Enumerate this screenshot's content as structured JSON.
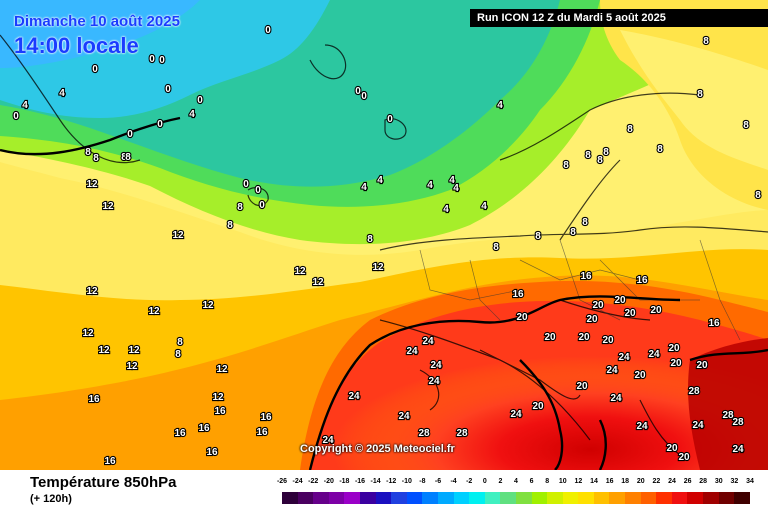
{
  "header": {
    "date": "Dimanche 10 août 2025",
    "time": "14:00 locale",
    "run": "Run ICON 12 Z du Mardi 5 août 2025"
  },
  "copyright": "Copyright © 2025 Meteociel.fr",
  "footer": {
    "title": "Température 850hPa",
    "subtitle": "(+ 120h)"
  },
  "legend": {
    "labels": [
      "-26",
      "-24",
      "-22",
      "-20",
      "-18",
      "-16",
      "-14",
      "-12",
      "-10",
      "-8",
      "-6",
      "-4",
      "-2",
      "0",
      "2",
      "4",
      "6",
      "8",
      "10",
      "12",
      "14",
      "16",
      "18",
      "20",
      "22",
      "24",
      "26",
      "28",
      "30",
      "32",
      "34"
    ],
    "colors": [
      "#2e003a",
      "#4a0060",
      "#66008a",
      "#7d00a6",
      "#9a00c8",
      "#3b00a0",
      "#1a10c0",
      "#2040e0",
      "#0050ff",
      "#0080ff",
      "#00aaff",
      "#00d0ff",
      "#00f0f0",
      "#40f0c0",
      "#60e080",
      "#80e040",
      "#a0f000",
      "#d0f000",
      "#f0f000",
      "#ffe000",
      "#ffc000",
      "#ffa000",
      "#ff8000",
      "#ff6000",
      "#ff3000",
      "#f01010",
      "#d00000",
      "#a00000",
      "#700000",
      "#400000"
    ]
  },
  "map_values": [
    {
      "v": "0"
    },
    {
      "v": "0"
    },
    {
      "v": "0"
    },
    {
      "v": "0"
    },
    {
      "v": "0"
    },
    {
      "v": "0"
    },
    {
      "v": "0"
    },
    {
      "v": "0"
    },
    {
      "v": "0"
    },
    {
      "v": "0"
    },
    {
      "v": "0"
    },
    {
      "v": "0"
    },
    {
      "v": "0"
    },
    {
      "v": "0"
    },
    {
      "v": "0"
    },
    {
      "v": "4"
    },
    {
      "v": "4"
    },
    {
      "v": "4"
    },
    {
      "v": "4"
    },
    {
      "v": "4"
    },
    {
      "v": "4"
    },
    {
      "v": "4"
    },
    {
      "v": "4"
    },
    {
      "v": "4"
    },
    {
      "v": "4"
    },
    {
      "v": "4"
    },
    {
      "v": "8"
    },
    {
      "v": "8"
    },
    {
      "v": "8"
    },
    {
      "v": "8"
    },
    {
      "v": "8"
    },
    {
      "v": "8"
    },
    {
      "v": "8"
    },
    {
      "v": "8"
    },
    {
      "v": "8"
    },
    {
      "v": "8"
    },
    {
      "v": "8"
    },
    {
      "v": "8"
    },
    {
      "v": "8"
    },
    {
      "v": "8"
    },
    {
      "v": "8"
    },
    {
      "v": "8"
    },
    {
      "v": "8"
    },
    {
      "v": "8"
    },
    {
      "v": "8"
    },
    {
      "v": "8"
    },
    {
      "v": "8"
    },
    {
      "v": "8"
    },
    {
      "v": "8"
    },
    {
      "v": "12"
    },
    {
      "v": "12"
    },
    {
      "v": "12"
    },
    {
      "v": "12"
    },
    {
      "v": "12"
    },
    {
      "v": "12"
    },
    {
      "v": "12"
    },
    {
      "v": "12"
    },
    {
      "v": "12"
    },
    {
      "v": "12"
    },
    {
      "v": "12"
    },
    {
      "v": "12"
    },
    {
      "v": "12"
    },
    {
      "v": "12"
    },
    {
      "v": "12"
    },
    {
      "v": "16"
    },
    {
      "v": "16"
    },
    {
      "v": "16"
    },
    {
      "v": "16"
    },
    {
      "v": "16"
    },
    {
      "v": "16"
    },
    {
      "v": "16"
    },
    {
      "v": "16"
    },
    {
      "v": "16"
    },
    {
      "v": "16"
    },
    {
      "v": "16"
    },
    {
      "v": "16"
    },
    {
      "v": "20"
    },
    {
      "v": "20"
    },
    {
      "v": "20"
    },
    {
      "v": "20"
    },
    {
      "v": "20"
    },
    {
      "v": "20"
    },
    {
      "v": "20"
    },
    {
      "v": "20"
    },
    {
      "v": "20"
    },
    {
      "v": "20"
    },
    {
      "v": "20"
    },
    {
      "v": "20"
    },
    {
      "v": "20"
    },
    {
      "v": "20"
    },
    {
      "v": "20"
    },
    {
      "v": "20"
    },
    {
      "v": "20"
    },
    {
      "v": "24"
    },
    {
      "v": "24"
    },
    {
      "v": "24"
    },
    {
      "v": "24"
    },
    {
      "v": "24"
    },
    {
      "v": "24"
    },
    {
      "v": "24"
    },
    {
      "v": "24"
    },
    {
      "v": "24"
    },
    {
      "v": "24"
    },
    {
      "v": "24"
    },
    {
      "v": "24"
    },
    {
      "v": "24"
    },
    {
      "v": "24"
    },
    {
      "v": "24"
    },
    {
      "v": "28"
    },
    {
      "v": "28"
    },
    {
      "v": "28"
    },
    {
      "v": "28"
    },
    {
      "v": "28"
    }
  ]
}
